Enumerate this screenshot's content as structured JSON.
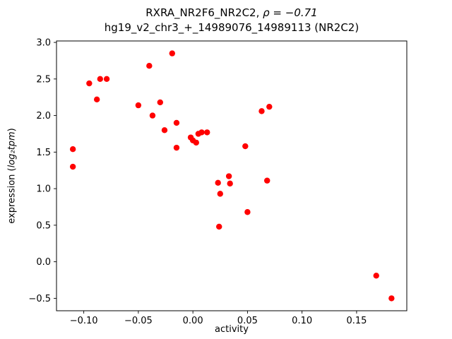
{
  "chart_data": {
    "type": "scatter",
    "title_line1_prefix": "RXRA_NR2F6_NR2C2, ",
    "title_line1_rho": "ρ",
    "title_line1_suffix": " = −0.71",
    "title_line2": "hg19_v2_chr3_+_14989076_14989113 (NR2C2)",
    "xlabel": "activity",
    "ylabel_prefix": "expression (",
    "ylabel_math": "log₂tpm",
    "ylabel_suffix": ")",
    "marker_color": "#ff0000",
    "grid": false,
    "legend": "none",
    "xlim": [
      -0.125,
      0.196
    ],
    "ylim": [
      -0.67,
      3.02
    ],
    "xticks": [
      {
        "v": -0.1,
        "label": "−0.10"
      },
      {
        "v": -0.05,
        "label": "−0.05"
      },
      {
        "v": 0.0,
        "label": "0.00"
      },
      {
        "v": 0.05,
        "label": "0.05"
      },
      {
        "v": 0.1,
        "label": "0.10"
      },
      {
        "v": 0.15,
        "label": "0.15"
      }
    ],
    "yticks": [
      {
        "v": -0.5,
        "label": "−0.5"
      },
      {
        "v": 0.0,
        "label": "0.0"
      },
      {
        "v": 0.5,
        "label": "0.5"
      },
      {
        "v": 1.0,
        "label": "1.0"
      },
      {
        "v": 1.5,
        "label": "1.5"
      },
      {
        "v": 2.0,
        "label": "2.0"
      },
      {
        "v": 2.5,
        "label": "2.5"
      },
      {
        "v": 3.0,
        "label": "3.0"
      }
    ],
    "points": [
      [
        -0.11,
        1.54
      ],
      [
        -0.11,
        1.3
      ],
      [
        -0.095,
        2.44
      ],
      [
        -0.088,
        2.22
      ],
      [
        -0.085,
        2.5
      ],
      [
        -0.079,
        2.5
      ],
      [
        -0.05,
        2.14
      ],
      [
        -0.04,
        2.68
      ],
      [
        -0.037,
        2.0
      ],
      [
        -0.03,
        2.18
      ],
      [
        -0.026,
        1.8
      ],
      [
        -0.019,
        2.85
      ],
      [
        -0.015,
        1.9
      ],
      [
        -0.015,
        1.56
      ],
      [
        -0.002,
        1.7
      ],
      [
        0.0,
        1.66
      ],
      [
        0.003,
        1.63
      ],
      [
        0.005,
        1.75
      ],
      [
        0.008,
        1.77
      ],
      [
        0.013,
        1.77
      ],
      [
        0.023,
        1.08
      ],
      [
        0.025,
        0.93
      ],
      [
        0.024,
        0.48
      ],
      [
        0.033,
        1.17
      ],
      [
        0.034,
        1.07
      ],
      [
        0.048,
        1.58
      ],
      [
        0.05,
        0.68
      ],
      [
        0.063,
        2.06
      ],
      [
        0.068,
        1.11
      ],
      [
        0.07,
        2.12
      ],
      [
        0.168,
        -0.19
      ],
      [
        0.182,
        -0.5
      ]
    ]
  }
}
